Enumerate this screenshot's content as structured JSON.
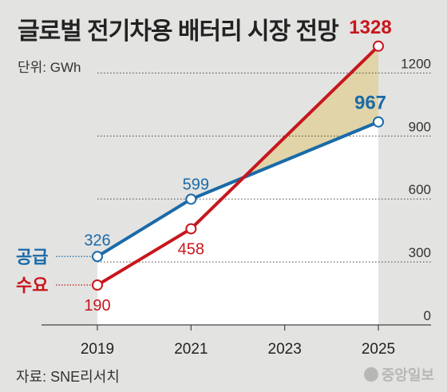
{
  "title": "글로벌 전기차용 배터리 시장 전망",
  "unit": "단위: GWh",
  "source": "자료: SNE리서치",
  "logo_text": "중앙일보",
  "colors": {
    "supply": "#1a6aa8",
    "demand": "#c8161d",
    "gap_fill": "#e0d4a8",
    "plot_bg": "#ffffff"
  },
  "chart_data": {
    "type": "line",
    "x": [
      2019,
      2021,
      2025
    ],
    "x_ticks": [
      "2019",
      "2021",
      "2023",
      "2025"
    ],
    "ylim": [
      0,
      1350
    ],
    "y_ticks": [
      "0",
      "300",
      "600",
      "900",
      "1200"
    ],
    "series": [
      {
        "name": "공급",
        "key": "supply",
        "values": [
          326,
          599,
          967
        ],
        "labels": [
          "326",
          "599",
          "967"
        ]
      },
      {
        "name": "수요",
        "key": "demand",
        "values": [
          190,
          458,
          1328
        ],
        "labels": [
          "190",
          "458",
          "1328"
        ]
      }
    ],
    "grid": "dotted horizontal at y ticks"
  }
}
